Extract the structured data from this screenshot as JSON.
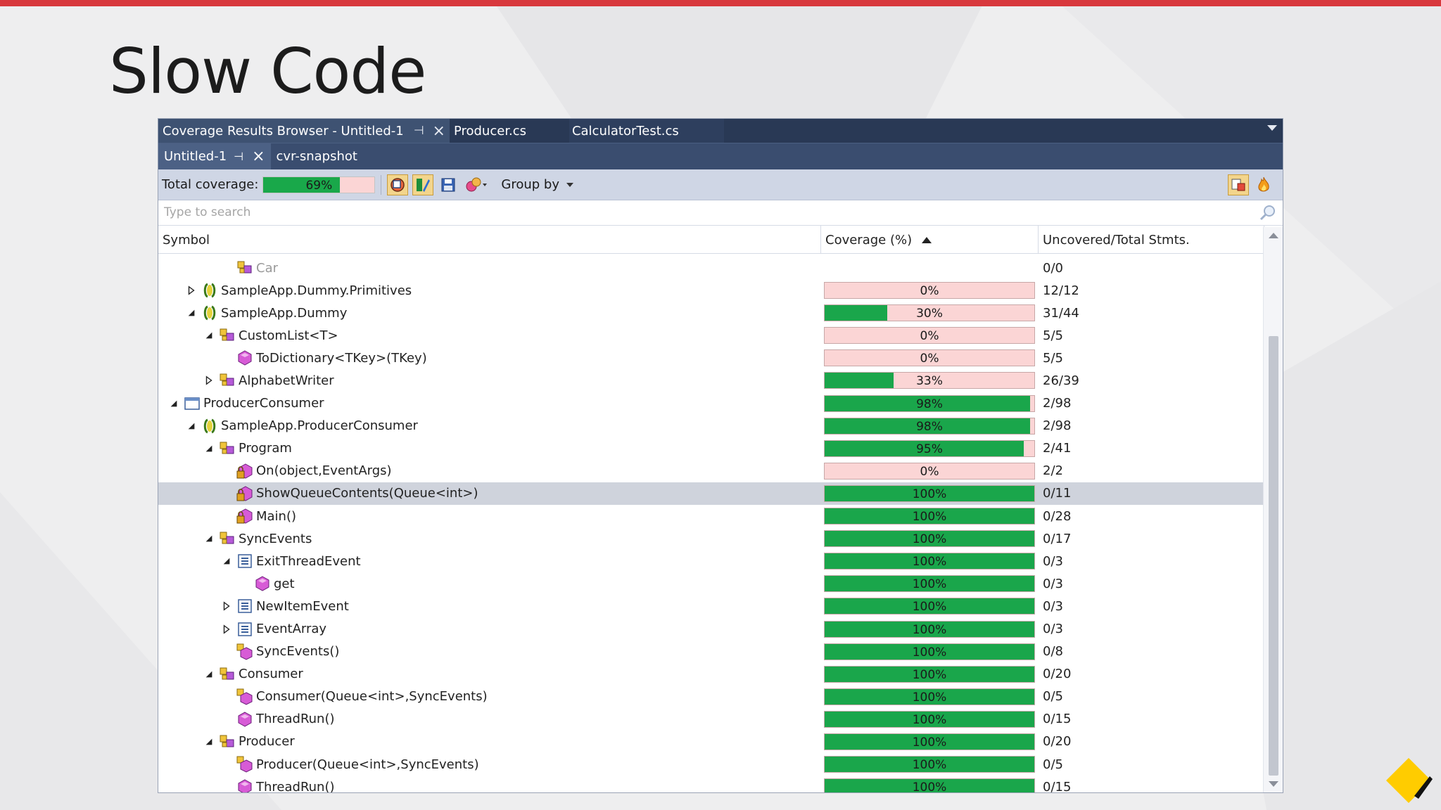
{
  "slide": {
    "title": "Slow Code"
  },
  "colors": {
    "accent": "#d8383d",
    "covered": "#1aa64b",
    "uncovered": "#fbd5d5",
    "header": "#293955"
  },
  "doc_tabs": [
    {
      "label": "Coverage Results Browser - Untitled-1",
      "active": true
    },
    {
      "label": "Producer.cs",
      "active": false
    },
    {
      "label": "CalculatorTest.cs",
      "active": false
    }
  ],
  "sub_tabs": [
    {
      "label": "Untitled-1",
      "active": true
    },
    {
      "label": "cvr-snapshot",
      "active": false
    }
  ],
  "toolbar": {
    "total_label": "Total coverage:",
    "total_pct": "69%",
    "total_value": 0.69,
    "group_by_label": "Group by"
  },
  "search": {
    "placeholder": "Type to search"
  },
  "columns": {
    "symbol": "Symbol",
    "coverage": "Coverage (%)",
    "stmts": "Uncovered/Total Stmts."
  },
  "rows": [
    {
      "indent": 3,
      "expander": "none",
      "icon": "class-icon",
      "name": "Car",
      "coverage": null,
      "pct": "",
      "stmts": "0/0",
      "dim": true
    },
    {
      "indent": 1,
      "expander": "collapsed",
      "icon": "namespace-icon",
      "name": "SampleApp.Dummy.Primitives",
      "coverage": 0,
      "pct": "0%",
      "stmts": "12/12"
    },
    {
      "indent": 1,
      "expander": "expanded",
      "icon": "namespace-icon",
      "name": "SampleApp.Dummy",
      "coverage": 0.3,
      "pct": "30%",
      "stmts": "31/44"
    },
    {
      "indent": 2,
      "expander": "expanded",
      "icon": "class-icon",
      "name": "CustomList<T>",
      "coverage": 0,
      "pct": "0%",
      "stmts": "5/5"
    },
    {
      "indent": 3,
      "expander": "none",
      "icon": "method-icon",
      "name": "ToDictionary<TKey>(TKey)",
      "coverage": 0,
      "pct": "0%",
      "stmts": "5/5"
    },
    {
      "indent": 2,
      "expander": "collapsed",
      "icon": "class-icon",
      "name": "AlphabetWriter",
      "coverage": 0.33,
      "pct": "33%",
      "stmts": "26/39"
    },
    {
      "indent": 0,
      "expander": "expanded",
      "icon": "assembly-icon",
      "name": "ProducerConsumer",
      "coverage": 0.98,
      "pct": "98%",
      "stmts": "2/98"
    },
    {
      "indent": 1,
      "expander": "expanded",
      "icon": "namespace-icon",
      "name": "SampleApp.ProducerConsumer",
      "coverage": 0.98,
      "pct": "98%",
      "stmts": "2/98"
    },
    {
      "indent": 2,
      "expander": "expanded",
      "icon": "class-icon",
      "name": "Program",
      "coverage": 0.95,
      "pct": "95%",
      "stmts": "2/41"
    },
    {
      "indent": 3,
      "expander": "none",
      "icon": "private-method-icon",
      "name": "On(object,EventArgs)",
      "coverage": 0,
      "pct": "0%",
      "stmts": "2/2"
    },
    {
      "indent": 3,
      "expander": "none",
      "icon": "private-method-icon",
      "name": "ShowQueueContents(Queue<int>)",
      "coverage": 1,
      "pct": "100%",
      "stmts": "0/11",
      "selected": true
    },
    {
      "indent": 3,
      "expander": "none",
      "icon": "private-method-icon",
      "name": "Main()",
      "coverage": 1,
      "pct": "100%",
      "stmts": "0/28"
    },
    {
      "indent": 2,
      "expander": "expanded",
      "icon": "class-icon",
      "name": "SyncEvents",
      "coverage": 1,
      "pct": "100%",
      "stmts": "0/17"
    },
    {
      "indent": 3,
      "expander": "expanded",
      "icon": "property-icon",
      "name": "ExitThreadEvent",
      "coverage": 1,
      "pct": "100%",
      "stmts": "0/3"
    },
    {
      "indent": 4,
      "expander": "none",
      "icon": "method-icon",
      "name": "get",
      "coverage": 1,
      "pct": "100%",
      "stmts": "0/3"
    },
    {
      "indent": 3,
      "expander": "collapsed",
      "icon": "property-icon",
      "name": "NewItemEvent",
      "coverage": 1,
      "pct": "100%",
      "stmts": "0/3"
    },
    {
      "indent": 3,
      "expander": "collapsed",
      "icon": "property-icon",
      "name": "EventArray",
      "coverage": 1,
      "pct": "100%",
      "stmts": "0/3"
    },
    {
      "indent": 3,
      "expander": "none",
      "icon": "constructor-icon",
      "name": "SyncEvents()",
      "coverage": 1,
      "pct": "100%",
      "stmts": "0/8"
    },
    {
      "indent": 2,
      "expander": "expanded",
      "icon": "class-icon",
      "name": "Consumer",
      "coverage": 1,
      "pct": "100%",
      "stmts": "0/20"
    },
    {
      "indent": 3,
      "expander": "none",
      "icon": "constructor-icon",
      "name": "Consumer(Queue<int>,SyncEvents)",
      "coverage": 1,
      "pct": "100%",
      "stmts": "0/5"
    },
    {
      "indent": 3,
      "expander": "none",
      "icon": "method-icon",
      "name": "ThreadRun()",
      "coverage": 1,
      "pct": "100%",
      "stmts": "0/15"
    },
    {
      "indent": 2,
      "expander": "expanded",
      "icon": "class-icon",
      "name": "Producer",
      "coverage": 1,
      "pct": "100%",
      "stmts": "0/20"
    },
    {
      "indent": 3,
      "expander": "none",
      "icon": "constructor-icon",
      "name": "Producer(Queue<int>,SyncEvents)",
      "coverage": 1,
      "pct": "100%",
      "stmts": "0/5"
    },
    {
      "indent": 3,
      "expander": "none",
      "icon": "method-icon",
      "name": "ThreadRun()",
      "coverage": 1,
      "pct": "100%",
      "stmts": "0/15"
    }
  ]
}
